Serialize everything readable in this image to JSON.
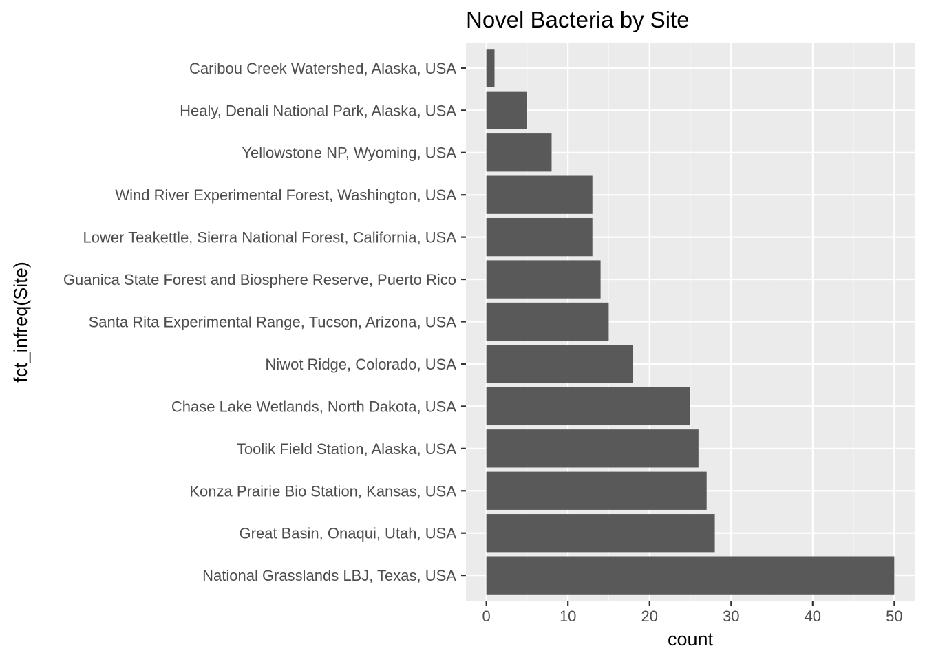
{
  "chart_data": {
    "type": "bar",
    "orientation": "horizontal",
    "title": "Novel Bacteria by Site",
    "xlabel": "count",
    "ylabel": "fct_infreq(Site)",
    "categories": [
      "National Grasslands LBJ, Texas, USA",
      "Great Basin, Onaqui, Utah, USA",
      "Konza Prairie Bio Station, Kansas, USA",
      "Toolik Field Station, Alaska, USA",
      "Chase Lake Wetlands, North Dakota, USA",
      "Niwot Ridge, Colorado, USA",
      "Santa Rita Experimental Range, Tucson, Arizona, USA",
      "Guanica State Forest and Biosphere Reserve, Puerto Rico",
      "Lower Teakettle, Sierra National Forest, California, USA",
      "Wind River Experimental Forest, Washington, USA",
      "Yellowstone NP, Wyoming, USA",
      "Healy, Denali National Park, Alaska, USA",
      "Caribou Creek Watershed, Alaska, USA"
    ],
    "values": [
      50,
      28,
      27,
      26,
      25,
      18,
      15,
      14,
      13,
      13,
      8,
      5,
      1
    ],
    "xlim": [
      -2.5,
      52.5
    ],
    "xticks": [
      0,
      10,
      20,
      30,
      40,
      50
    ],
    "grid": true,
    "legend": "none",
    "colors": {
      "bar": "#595959",
      "panel_background": "#ebebeb",
      "grid_major": "#ffffff",
      "grid_minor": "#f5f5f5",
      "tick_mark": "#333333",
      "tick_label": "#4d4d4d",
      "title": "#000000"
    }
  }
}
